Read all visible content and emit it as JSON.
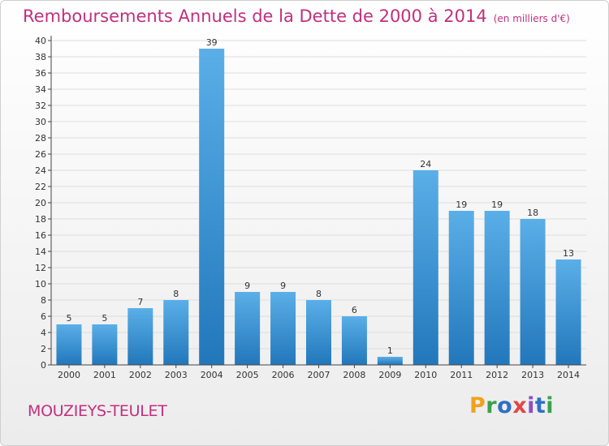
{
  "title": "Remboursements Annuels de la Dette de 2000 à 2014",
  "unit_note": "(en milliers d'€)",
  "place": "MOUZIEYS-TEULET",
  "logo_text": "Proxiti",
  "colors": {
    "title": "#c0307e",
    "bar_light": "#5aafe8",
    "bar_dark": "#2277bb",
    "grid": "#dddddd",
    "axis": "#444444"
  },
  "chart_data": {
    "type": "bar",
    "title": "Remboursements Annuels de la Dette de 2000 à 2014",
    "xlabel": "",
    "ylabel": "",
    "ylim": [
      0,
      40
    ],
    "ytick_step": 2,
    "grid": true,
    "categories": [
      "2000",
      "2001",
      "2002",
      "2003",
      "2004",
      "2005",
      "2006",
      "2007",
      "2008",
      "2009",
      "2010",
      "2011",
      "2012",
      "2013",
      "2014"
    ],
    "values": [
      5,
      5,
      7,
      8,
      39,
      9,
      9,
      8,
      6,
      1,
      24,
      19,
      19,
      18,
      13
    ]
  }
}
